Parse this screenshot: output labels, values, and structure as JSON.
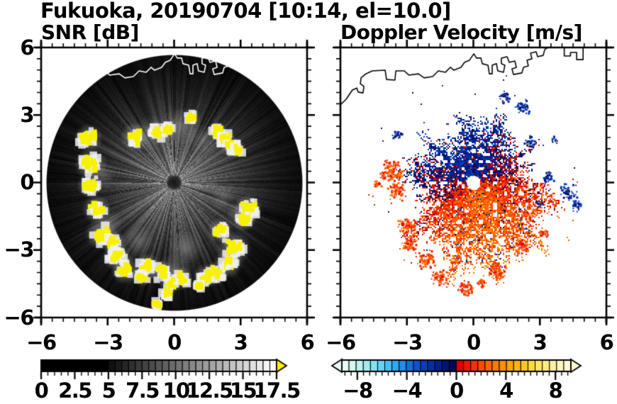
{
  "title": "Fukuoka, 20190704 [10:14, el=10.0]",
  "coastline": {
    "color_on_snr_panel": "#ffffff",
    "color_on_velocity_panel": "#000000",
    "points": [
      [
        -6.0,
        3.45
      ],
      [
        -5.74,
        3.7
      ],
      [
        -5.46,
        4.11
      ],
      [
        -5.26,
        4.2
      ],
      [
        -5.2,
        4.02
      ],
      [
        -4.98,
        3.98
      ],
      [
        -4.94,
        4.27
      ],
      [
        -5.1,
        4.39
      ],
      [
        -5.07,
        4.65
      ],
      [
        -4.85,
        4.83
      ],
      [
        -4.56,
        4.96
      ],
      [
        -3.98,
        4.99
      ],
      [
        -3.92,
        4.58
      ],
      [
        -3.54,
        4.55
      ],
      [
        -3.5,
        4.96
      ],
      [
        -3.12,
        4.96
      ],
      [
        -2.9,
        4.77
      ],
      [
        -2.48,
        4.83
      ],
      [
        -2.22,
        4.65
      ],
      [
        -1.84,
        4.71
      ],
      [
        -1.58,
        4.96
      ],
      [
        -1.26,
        4.9
      ],
      [
        -1.04,
        5.12
      ],
      [
        -0.88,
        4.99
      ],
      [
        -0.56,
        5.12
      ],
      [
        -0.4,
        5.34
      ],
      [
        -0.18,
        5.43
      ],
      [
        0.02,
        5.72
      ],
      [
        0.14,
        5.53
      ],
      [
        0.34,
        5.53
      ],
      [
        0.4,
        5.28
      ],
      [
        0.66,
        5.21
      ],
      [
        0.72,
        4.83
      ],
      [
        0.85,
        4.83
      ],
      [
        0.85,
        5.21
      ],
      [
        1.04,
        5.28
      ],
      [
        1.1,
        4.96
      ],
      [
        1.36,
        4.9
      ],
      [
        1.42,
        5.21
      ],
      [
        1.26,
        5.28
      ],
      [
        1.26,
        5.53
      ],
      [
        1.52,
        5.59
      ],
      [
        1.62,
        5.34
      ],
      [
        1.87,
        5.4
      ],
      [
        1.94,
        5.12
      ],
      [
        1.74,
        5.05
      ],
      [
        1.81,
        4.8
      ],
      [
        2.19,
        4.87
      ],
      [
        2.26,
        5.12
      ],
      [
        2.48,
        5.18
      ],
      [
        2.42,
        5.43
      ],
      [
        2.64,
        5.5
      ],
      [
        2.58,
        5.75
      ],
      [
        2.83,
        5.81
      ],
      [
        2.9,
        5.59
      ],
      [
        3.15,
        5.65
      ],
      [
        3.22,
        5.91
      ],
      [
        3.44,
        6.05
      ]
    ],
    "harbor_piece": [
      [
        4.1,
        6.05
      ],
      [
        4.1,
        5.62
      ],
      [
        4.38,
        5.62
      ],
      [
        4.38,
        5.78
      ],
      [
        4.66,
        5.78
      ],
      [
        4.66,
        5.46
      ],
      [
        4.95,
        5.46
      ],
      [
        4.95,
        6.05
      ]
    ]
  },
  "chart_data": [
    {
      "id": "snr",
      "type": "heatmap",
      "title": "SNR [dB]",
      "xlim": [
        -6,
        6
      ],
      "ylim": [
        -6,
        6
      ],
      "xtick_values": [
        -6,
        -3,
        0,
        3,
        6
      ],
      "xtick_labels": [
        "−6",
        "−3",
        "0",
        "3",
        "6"
      ],
      "ytick_values": [
        6,
        3,
        0,
        -3,
        -6
      ],
      "ytick_labels": [
        "6",
        "3",
        "0",
        "−3",
        "−6"
      ],
      "minor_tick_step": 0.5,
      "grid": false,
      "scan_radius": 5.8,
      "center_hole_radius": 0.3,
      "colorbar": {
        "position": "bottom",
        "range": [
          0,
          17.5
        ],
        "tick_values": [
          0,
          2.5,
          5,
          7.5,
          10,
          12.5,
          15,
          17.5
        ],
        "tick_labels": [
          "0",
          "2.5",
          "5",
          "7.5",
          "10",
          "12.5",
          "15",
          "17.5"
        ],
        "minor_tick_step": 0.5,
        "over_arrow_color": "#ffee00",
        "segment_colors": [
          "#000000",
          "#000000",
          "#000000",
          "#000000",
          "#000000",
          "#000000",
          "#000000",
          "#000000",
          "#000000",
          "#000000",
          "#111111",
          "#1b1b1b",
          "#252525",
          "#2f2f2f",
          "#393939",
          "#434343",
          "#4c4c4c",
          "#565656",
          "#606060",
          "#6a6a6a",
          "#747474",
          "#7e7e7e",
          "#888888",
          "#919191",
          "#9b9b9b",
          "#a5a5a5",
          "#afafaf",
          "#b9b9b9",
          "#c3c3c3",
          "#cdcdcd",
          "#d7d7d7",
          "#e0e0e0",
          "#eaeaea",
          "#f4f4f4",
          "#ffffff"
        ]
      },
      "description": "Circular lidar PPI scan of SNR: gray speckle brightest near the lidar fading to black toward 5.8 km range, fine radial streaks, a dark spot at scan centre, yellow clusters (SNR above colorbar maximum 17.5 dB) in a ring roughly 2-5 km from the lidar, and a white coastline overlay across the north of the scan.",
      "high_snr_patches_xys": [
        [
          -3.86,
          1.97,
          0.3
        ],
        [
          -3.76,
          0.8,
          0.34
        ],
        [
          -3.82,
          -0.14,
          0.26
        ],
        [
          -3.5,
          -1.18,
          0.3
        ],
        [
          -3.28,
          -2.28,
          0.34
        ],
        [
          -2.74,
          -2.66,
          0.26
        ],
        [
          -2.58,
          -3.29,
          0.3
        ],
        [
          -2.22,
          -3.89,
          0.3
        ],
        [
          -1.78,
          2.03,
          0.3
        ],
        [
          -0.82,
          2.28,
          0.22
        ],
        [
          -0.27,
          2.35,
          0.18
        ],
        [
          0.78,
          2.88,
          0.18
        ],
        [
          1.97,
          2.28,
          0.2
        ],
        [
          2.29,
          1.94,
          0.22
        ],
        [
          2.61,
          1.59,
          0.22
        ],
        [
          2.86,
          1.46,
          0.18
        ],
        [
          3.34,
          -1.18,
          0.3
        ],
        [
          3.18,
          -1.65,
          0.24
        ],
        [
          2.06,
          -2.13,
          0.26
        ],
        [
          2.7,
          -2.91,
          0.36
        ],
        [
          2.45,
          -3.61,
          0.3
        ],
        [
          1.9,
          -4.02,
          0.26
        ],
        [
          1.42,
          -4.17,
          0.26
        ],
        [
          0.3,
          -4.27,
          0.26
        ],
        [
          -0.18,
          -4.49,
          0.22
        ],
        [
          -0.56,
          -3.98,
          0.26
        ],
        [
          -1.2,
          -3.73,
          0.28
        ],
        [
          -1.46,
          -4.17,
          0.22
        ],
        [
          -0.34,
          -4.96,
          0.16
        ],
        [
          -0.75,
          -5.43,
          0.12
        ],
        [
          1.1,
          -4.6,
          0.14
        ]
      ],
      "bright_fuzz_xyra": [
        [
          -1.0,
          2.2,
          0.8,
          0.25
        ],
        [
          0.3,
          2.5,
          0.9,
          0.3
        ],
        [
          1.3,
          1.9,
          0.7,
          0.2
        ],
        [
          -3.2,
          0.3,
          0.6,
          0.25
        ],
        [
          0.5,
          -2.9,
          0.8,
          0.3
        ],
        [
          -1.6,
          -2.6,
          0.7,
          0.25
        ],
        [
          2.2,
          -0.7,
          0.6,
          0.2
        ],
        [
          3.0,
          -1.4,
          0.7,
          0.3
        ],
        [
          0.0,
          -3.9,
          0.8,
          0.3
        ],
        [
          -2.9,
          -1.8,
          0.6,
          0.25
        ]
      ]
    },
    {
      "id": "velocity",
      "type": "heatmap",
      "title": "Doppler Velocity [m/s]",
      "xlim": [
        -6,
        6
      ],
      "ylim": [
        -6,
        6
      ],
      "xtick_values": [
        -6,
        -3,
        0,
        3,
        6
      ],
      "xtick_labels": [
        "−6",
        "−3",
        "0",
        "3",
        "6"
      ],
      "minor_tick_step": 0.5,
      "grid": false,
      "center_hole_radius": 0.3,
      "colorbar": {
        "position": "bottom",
        "range": [
          -9.25,
          9.25
        ],
        "tick_values": [
          -8,
          -4,
          0,
          4,
          8
        ],
        "tick_labels": [
          "−8",
          "−4",
          "0",
          "4",
          "8"
        ],
        "minor_tick_step": 0.5,
        "under_arrow_color": "#eafdf9",
        "over_arrow_color": "#fff9d6",
        "segment_colors": [
          "#eafdf9",
          "#d6f8f3",
          "#bef2f0",
          "#a2ebf0",
          "#83e1f3",
          "#62d3f5",
          "#44c0f6",
          "#2daaf4",
          "#1c8eec",
          "#116fe0",
          "#0955d0",
          "#0440bc",
          "#032ea6",
          "#02208e",
          "#011473",
          "#000a56",
          "#dc0000",
          "#e91800",
          "#f33300",
          "#fa4d00",
          "#fe6500",
          "#ff7b00",
          "#ff9000",
          "#ffa400",
          "#ffb70a",
          "#ffc922",
          "#ffd840",
          "#ffe362",
          "#ffec84",
          "#fff2a4",
          "#fff6c0",
          "#fff9d6"
        ]
      },
      "flow": {
        "toward_sector": "north-northwest of lidar, negative velocity, dark navy blue",
        "away_sector": "south-southeast of lidar, positive velocity, red-orange",
        "zero_isodop_azimuth_deg": [
          15,
          195
        ],
        "typical_toward_mps": -2,
        "typical_away_mps": 3,
        "main_echo_radius_km": [
          2.6,
          4.2
        ]
      },
      "description": "Doppler velocity speckle on white background: contiguous dark-blue (toward) echo north/northwest of the lidar, red-orange (away) echo east through south, white dot at scan centre, scattered detached echo patches out to 5 km, black coastline overlay across the north.",
      "negative_patches_xysn": [
        [
          -3.45,
          2.15,
          0.18,
          26
        ],
        [
          1.35,
          3.85,
          0.2,
          30
        ],
        [
          2.2,
          3.4,
          0.24,
          40
        ],
        [
          2.5,
          1.85,
          0.18,
          26
        ],
        [
          3.3,
          0.3,
          0.22,
          32
        ],
        [
          4.25,
          -0.35,
          0.26,
          44
        ],
        [
          4.6,
          -1.0,
          0.2,
          30
        ],
        [
          2.95,
          -0.9,
          0.13,
          14
        ],
        [
          3.6,
          1.9,
          0.12,
          12
        ]
      ],
      "positive_patches_xysn": [
        [
          -3.75,
          0.55,
          0.34,
          110
        ],
        [
          -3.5,
          -0.35,
          0.28,
          70
        ],
        [
          -3.0,
          -1.9,
          0.28,
          70
        ],
        [
          -2.9,
          -2.7,
          0.26,
          60
        ],
        [
          -2.2,
          -3.4,
          0.28,
          70
        ],
        [
          -1.55,
          -4.2,
          0.26,
          60
        ],
        [
          -0.4,
          -4.7,
          0.24,
          50
        ],
        [
          1.05,
          -3.9,
          0.28,
          70
        ],
        [
          2.15,
          -2.8,
          0.28,
          70
        ],
        [
          2.5,
          -1.35,
          0.24,
          50
        ],
        [
          -4.35,
          -0.05,
          0.13,
          16
        ],
        [
          0.3,
          -4.4,
          0.18,
          30
        ],
        [
          3.1,
          -2.2,
          0.16,
          24
        ]
      ]
    }
  ]
}
